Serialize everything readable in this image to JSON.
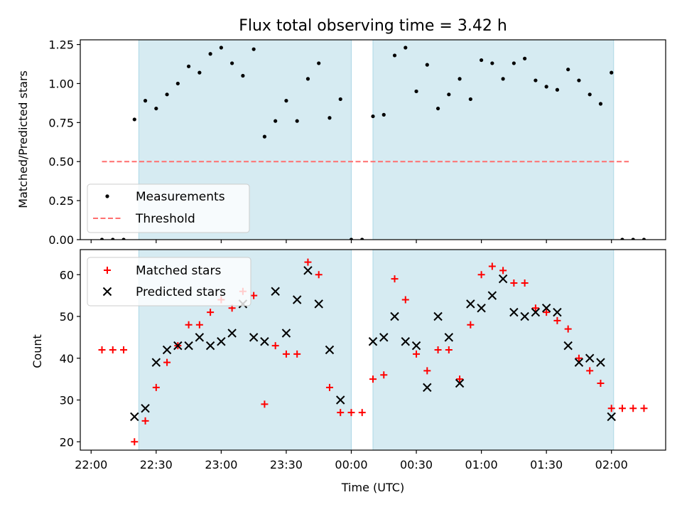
{
  "chart_data": [
    {
      "type": "scatter",
      "panel": "top",
      "title": "Flux total observing time = 3.42 h",
      "xlabel": "",
      "ylabel": "Matched/Predicted stars",
      "ylim": [
        0,
        1.28
      ],
      "yticks": [
        "0.00",
        "0.25",
        "0.50",
        "0.75",
        "1.00",
        "1.25"
      ],
      "shaded_intervals": [
        [
          "22:22",
          "00:00"
        ],
        [
          "00:10",
          "02:01"
        ]
      ],
      "shade_color": "#add8e6",
      "threshold": {
        "name": "Threshold",
        "value": 0.5,
        "x_start": "22:05",
        "x_end": "02:08",
        "color": "#ff6f6f"
      },
      "legend": {
        "placement": "lower-left",
        "entries": [
          "Measurements",
          "Threshold"
        ]
      },
      "series": [
        {
          "name": "Measurements",
          "color": "#000000",
          "x": [
            "22:05",
            "22:10",
            "22:15",
            "22:20",
            "22:25",
            "22:30",
            "22:35",
            "22:40",
            "22:45",
            "22:50",
            "22:55",
            "23:00",
            "23:05",
            "23:10",
            "23:15",
            "23:20",
            "23:25",
            "23:30",
            "23:35",
            "23:40",
            "23:45",
            "23:50",
            "23:55",
            "00:00",
            "00:05",
            "00:10",
            "00:15",
            "00:20",
            "00:25",
            "00:30",
            "00:35",
            "00:40",
            "00:45",
            "00:50",
            "00:55",
            "01:00",
            "01:05",
            "01:10",
            "01:15",
            "01:20",
            "01:25",
            "01:30",
            "01:35",
            "01:40",
            "01:45",
            "01:50",
            "01:55",
            "02:00",
            "02:05",
            "02:10",
            "02:15"
          ],
          "y": [
            0.0,
            0.0,
            0.0,
            0.77,
            0.89,
            0.84,
            0.93,
            1.0,
            1.11,
            1.07,
            1.19,
            1.23,
            1.13,
            1.05,
            1.22,
            0.66,
            0.76,
            0.89,
            0.76,
            1.03,
            1.13,
            0.78,
            0.9,
            0.0,
            0.0,
            0.79,
            0.8,
            1.18,
            1.23,
            0.95,
            1.12,
            0.84,
            0.93,
            1.03,
            0.9,
            1.15,
            1.13,
            1.03,
            1.13,
            1.16,
            1.02,
            0.98,
            0.96,
            1.09,
            1.02,
            0.93,
            0.87,
            1.07,
            0.0,
            0.0,
            0.0
          ]
        }
      ]
    },
    {
      "type": "scatter",
      "panel": "bottom",
      "xlabel": "Time (UTC)",
      "ylabel": "Count",
      "ylim": [
        18,
        66
      ],
      "yticks": [
        "20",
        "30",
        "40",
        "50",
        "60"
      ],
      "xticks": [
        "22:00",
        "22:30",
        "23:00",
        "23:30",
        "00:00",
        "00:30",
        "01:00",
        "01:30",
        "02:00"
      ],
      "xlim": [
        "21:55",
        "02:25"
      ],
      "shaded_intervals": [
        [
          "22:22",
          "00:00"
        ],
        [
          "00:10",
          "02:01"
        ]
      ],
      "shade_color": "#add8e6",
      "legend": {
        "placement": "upper-left",
        "entries": [
          "Matched stars",
          "Predicted stars"
        ]
      },
      "series": [
        {
          "name": "Matched stars",
          "marker": "plus",
          "color": "#ff0000",
          "x": [
            "22:05",
            "22:10",
            "22:15",
            "22:20",
            "22:25",
            "22:30",
            "22:35",
            "22:40",
            "22:45",
            "22:50",
            "22:55",
            "23:00",
            "23:05",
            "23:10",
            "23:15",
            "23:20",
            "23:25",
            "23:30",
            "23:35",
            "23:40",
            "23:45",
            "23:50",
            "23:55",
            "00:00",
            "00:05",
            "00:10",
            "00:15",
            "00:20",
            "00:25",
            "00:30",
            "00:35",
            "00:40",
            "00:45",
            "00:50",
            "00:55",
            "01:00",
            "01:05",
            "01:10",
            "01:15",
            "01:20",
            "01:25",
            "01:30",
            "01:35",
            "01:40",
            "01:45",
            "01:50",
            "01:55",
            "02:00",
            "02:05",
            "02:10",
            "02:15"
          ],
          "y": [
            42,
            42,
            42,
            20,
            25,
            33,
            39,
            43,
            48,
            48,
            51,
            54,
            52,
            56,
            55,
            29,
            43,
            41,
            41,
            63,
            60,
            33,
            27,
            27,
            27,
            35,
            36,
            59,
            54,
            41,
            37,
            42,
            42,
            35,
            48,
            60,
            62,
            61,
            58,
            58,
            52,
            51,
            49,
            47,
            40,
            37,
            34,
            28,
            28,
            28,
            28
          ]
        },
        {
          "name": "Predicted stars",
          "marker": "x",
          "color": "#000000",
          "x": [
            "22:20",
            "22:25",
            "22:30",
            "22:35",
            "22:40",
            "22:45",
            "22:50",
            "22:55",
            "23:00",
            "23:05",
            "23:10",
            "23:15",
            "23:20",
            "23:25",
            "23:30",
            "23:35",
            "23:40",
            "23:45",
            "23:50",
            "23:55",
            "00:10",
            "00:15",
            "00:20",
            "00:25",
            "00:30",
            "00:35",
            "00:40",
            "00:45",
            "00:50",
            "00:55",
            "01:00",
            "01:05",
            "01:10",
            "01:15",
            "01:20",
            "01:25",
            "01:30",
            "01:35",
            "01:40",
            "01:45",
            "01:50",
            "01:55",
            "02:00"
          ],
          "y": [
            26,
            28,
            39,
            42,
            43,
            43,
            45,
            43,
            44,
            46,
            53,
            45,
            44,
            56,
            46,
            54,
            61,
            53,
            42,
            30,
            44,
            45,
            50,
            44,
            43,
            33,
            50,
            45,
            34,
            53,
            52,
            55,
            59,
            51,
            50,
            51,
            52,
            51,
            43,
            39,
            40,
            39,
            26
          ]
        }
      ]
    }
  ]
}
